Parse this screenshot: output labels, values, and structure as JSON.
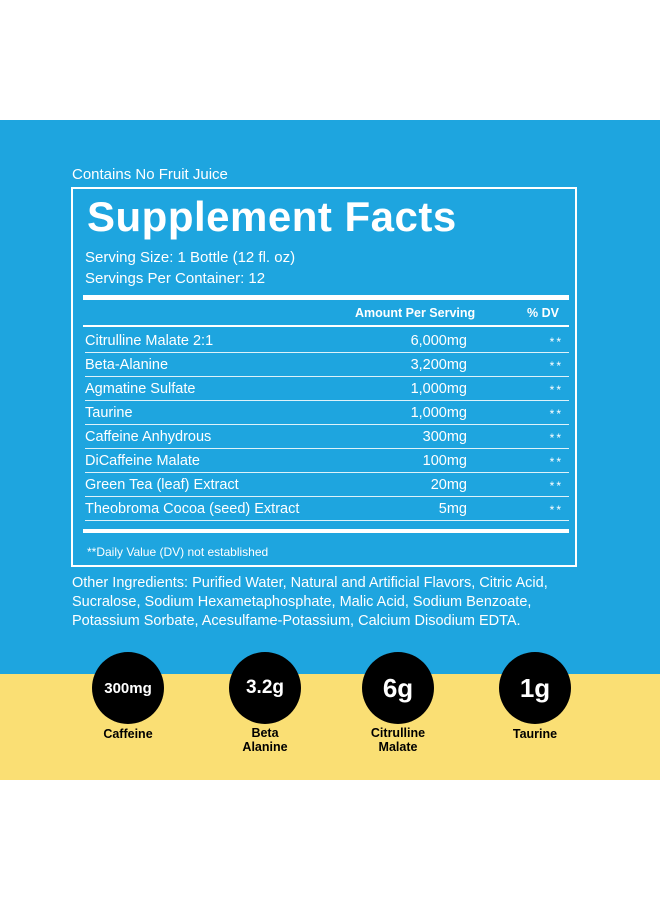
{
  "label": {
    "pre_title": "Contains No Fruit Juice",
    "title": "Supplement Facts",
    "serving_size": "Serving Size: 1 Bottle (12 fl. oz)",
    "servings_per_container": "Servings Per Container: 12",
    "header_amount": "Amount Per Serving",
    "header_dv": "% DV",
    "ingredients": [
      {
        "name": "Citrulline Malate 2:1",
        "amount": "6,000mg",
        "dv": "**"
      },
      {
        "name": "Beta-Alanine",
        "amount": "3,200mg",
        "dv": "**"
      },
      {
        "name": "Agmatine Sulfate",
        "amount": "1,000mg",
        "dv": "**"
      },
      {
        "name": "Taurine",
        "amount": "1,000mg",
        "dv": "**"
      },
      {
        "name": "Caffeine Anhydrous",
        "amount": "300mg",
        "dv": "**"
      },
      {
        "name": "DiCaffeine Malate",
        "amount": "100mg",
        "dv": "**"
      },
      {
        "name": "Green Tea (leaf) Extract",
        "amount": "20mg",
        "dv": "**"
      },
      {
        "name": "Theobroma Cocoa (seed) Extract",
        "amount": "5mg",
        "dv": "**"
      }
    ],
    "footnote": "**Daily Value (DV) not established",
    "other_ingredients": "Other Ingredients: Purified Water, Natural and Artificial Flavors, Citric Acid, Sucralose, Sodium Hexametaphosphate, Malic Acid, Sodium Benzoate, Potassium Sorbate, Acesulfame-Potassium, Calcium Disodium EDTA."
  },
  "highlights": [
    {
      "value": "300mg",
      "label": "Caffeine"
    },
    {
      "value": "3.2g",
      "label": "Beta\nAlanine"
    },
    {
      "value": "6g",
      "label": "Citrulline\nMalate"
    },
    {
      "value": "1g",
      "label": "Taurine"
    }
  ],
  "colors": {
    "panel_blue": "#1ea5df",
    "band_yellow": "#fadf74",
    "badge_black": "#000000",
    "text_white": "#ffffff"
  }
}
